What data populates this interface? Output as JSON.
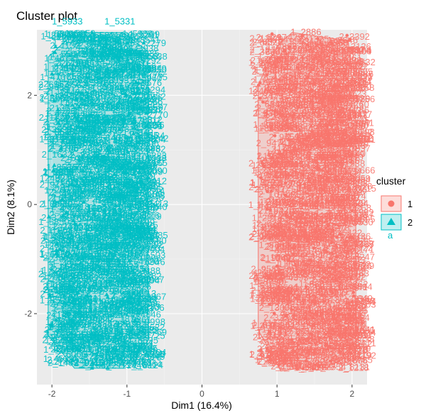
{
  "chart_data": {
    "type": "scatter",
    "title": "Cluster plot",
    "xlabel": "Dim1 (16.4%)",
    "ylabel": "Dim2 (8.1%)",
    "xlim": [
      -2.2,
      2.2
    ],
    "ylim": [
      -3.3,
      3.2
    ],
    "x_ticks": [
      -2,
      -1,
      0,
      1,
      2
    ],
    "y_ticks": [
      -2,
      0,
      2
    ],
    "grid": true,
    "legend": {
      "title": "cluster",
      "placement": "right",
      "entries": [
        {
          "label": "1",
          "shape": "circle",
          "color": "#F8766D"
        },
        {
          "label": "2",
          "shape": "triangle",
          "color": "#00BFC4"
        }
      ],
      "glyph_letter": "a"
    },
    "series": [
      {
        "name": "1",
        "color": "#F8766D",
        "shape": "circle",
        "x_range": [
          0.75,
          2.05
        ],
        "y_range": [
          -3.05,
          3.15
        ],
        "hull": [
          [
            1.2,
            3.15
          ],
          [
            1.95,
            3.0
          ],
          [
            2.05,
            1.5
          ],
          [
            2.05,
            -2.5
          ],
          [
            1.8,
            -2.9
          ],
          [
            1.05,
            -3.05
          ],
          [
            0.75,
            -2.3
          ],
          [
            0.75,
            2.2
          ],
          [
            1.0,
            2.9
          ]
        ],
        "labels": [
          {
            "text": "1_2886",
            "x": 1.18,
            "y": 3.1
          },
          {
            "text": "1_2404",
            "x": 1.85,
            "y": 2.75
          },
          {
            "text": "1_2542",
            "x": 1.3,
            "y": 2.6
          },
          {
            "text": "1_4474",
            "x": 1.85,
            "y": 2.2
          },
          {
            "text": "2_1999",
            "x": 1.05,
            "y": -2.7
          },
          {
            "text": "2_1021",
            "x": 1.72,
            "y": -2.65
          },
          {
            "text": "2_1541",
            "x": 1.9,
            "y": -2.35
          }
        ]
      },
      {
        "name": "2",
        "color": "#00BFC4",
        "shape": "triangle",
        "x_range": [
          -2.05,
          -0.72
        ],
        "y_range": [
          -3.0,
          3.2
        ],
        "hull": [
          [
            -1.7,
            3.15
          ],
          [
            -1.05,
            3.15
          ],
          [
            -0.72,
            2.8
          ],
          [
            -0.72,
            -2.5
          ],
          [
            -1.05,
            -3.0
          ],
          [
            -1.7,
            -3.0
          ],
          [
            -2.05,
            -2.4
          ],
          [
            -2.05,
            2.7
          ]
        ],
        "labels": [
          {
            "text": "1_5933",
            "x": -2.0,
            "y": 3.3
          },
          {
            "text": "1_5331",
            "x": -1.3,
            "y": 3.3
          },
          {
            "text": "1_4165",
            "x": -1.95,
            "y": 3.05
          },
          {
            "text": "1_5564",
            "x": -2.02,
            "y": 2.7
          },
          {
            "text": "1_2173",
            "x": -1.1,
            "y": 1.65
          },
          {
            "text": "1_6381",
            "x": -1.45,
            "y": 1.45
          },
          {
            "text": "1_7139",
            "x": -1.9,
            "y": 0.35
          },
          {
            "text": "2_34",
            "x": -2.0,
            "y": -2.55
          },
          {
            "text": "2_5361",
            "x": -1.15,
            "y": -2.45
          },
          {
            "text": "2_6066",
            "x": -1.95,
            "y": -2.8
          },
          {
            "text": "2_5410",
            "x": -1.3,
            "y": -2.8
          }
        ]
      }
    ]
  }
}
